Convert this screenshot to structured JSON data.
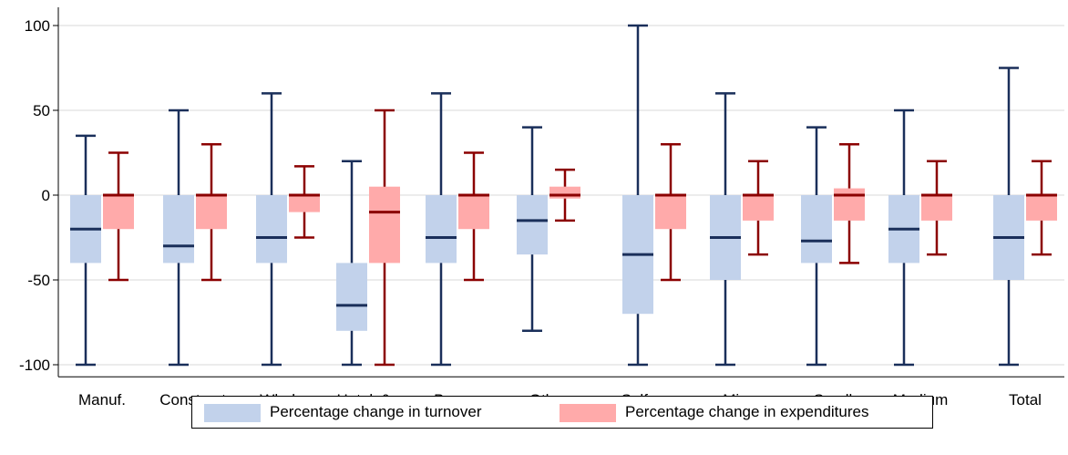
{
  "chart_data": {
    "type": "boxplot",
    "categories": [
      "Manuf.",
      "Construct.",
      "Wholes.",
      "Hotels&r.",
      "B.serv.",
      "Other",
      "Self-emp.",
      "Micro",
      "Small",
      "Medium",
      "Total"
    ],
    "ylim": [
      -105,
      110
    ],
    "yticks": [
      100,
      50,
      0,
      -50,
      -100
    ],
    "ytick_labels": [
      "100",
      "50",
      "0",
      "-50",
      "-100"
    ],
    "grid": true,
    "legend_position": "bottom",
    "series": [
      {
        "name": "Percentage change in turnover",
        "fill": "#c2d2eb",
        "stroke": "#1a2f5a",
        "boxes": [
          {
            "min": -100,
            "q1": -40,
            "median": -20,
            "q3": 0,
            "max": 35
          },
          {
            "min": -100,
            "q1": -40,
            "median": -30,
            "q3": 0,
            "max": 50
          },
          {
            "min": -100,
            "q1": -40,
            "median": -25,
            "q3": 0,
            "max": 60
          },
          {
            "min": -100,
            "q1": -80,
            "median": -65,
            "q3": -40,
            "max": 20
          },
          {
            "min": -100,
            "q1": -40,
            "median": -25,
            "q3": 0,
            "max": 60
          },
          {
            "min": -80,
            "q1": -35,
            "median": -15,
            "q3": 0,
            "max": 40
          },
          {
            "min": -100,
            "q1": -70,
            "median": -35,
            "q3": 0,
            "max": 100
          },
          {
            "min": -100,
            "q1": -50,
            "median": -25,
            "q3": 0,
            "max": 60
          },
          {
            "min": -100,
            "q1": -40,
            "median": -27,
            "q3": 0,
            "max": 40
          },
          {
            "min": -100,
            "q1": -40,
            "median": -20,
            "q3": 0,
            "max": 50
          },
          {
            "min": -100,
            "q1": -50,
            "median": -25,
            "q3": 0,
            "max": 75
          }
        ]
      },
      {
        "name": "Percentage change in expenditures",
        "fill": "#ffaaaa",
        "stroke": "#8b0000",
        "boxes": [
          {
            "min": -50,
            "q1": -20,
            "median": 0,
            "q3": 0,
            "max": 25
          },
          {
            "min": -50,
            "q1": -20,
            "median": 0,
            "q3": 0,
            "max": 30
          },
          {
            "min": -25,
            "q1": -10,
            "median": 0,
            "q3": 0,
            "max": 17
          },
          {
            "min": -100,
            "q1": -40,
            "median": -10,
            "q3": 5,
            "max": 50
          },
          {
            "min": -50,
            "q1": -20,
            "median": 0,
            "q3": 0,
            "max": 25
          },
          {
            "min": -15,
            "q1": -2,
            "median": 0,
            "q3": 5,
            "max": 15
          },
          {
            "min": -50,
            "q1": -20,
            "median": 0,
            "q3": 0,
            "max": 30
          },
          {
            "min": -35,
            "q1": -15,
            "median": 0,
            "q3": 0,
            "max": 20
          },
          {
            "min": -40,
            "q1": -15,
            "median": 0,
            "q3": 4,
            "max": 30
          },
          {
            "min": -35,
            "q1": -15,
            "median": 0,
            "q3": 0,
            "max": 20
          },
          {
            "min": -35,
            "q1": -15,
            "median": 0,
            "q3": 0,
            "max": 20
          }
        ]
      }
    ]
  }
}
